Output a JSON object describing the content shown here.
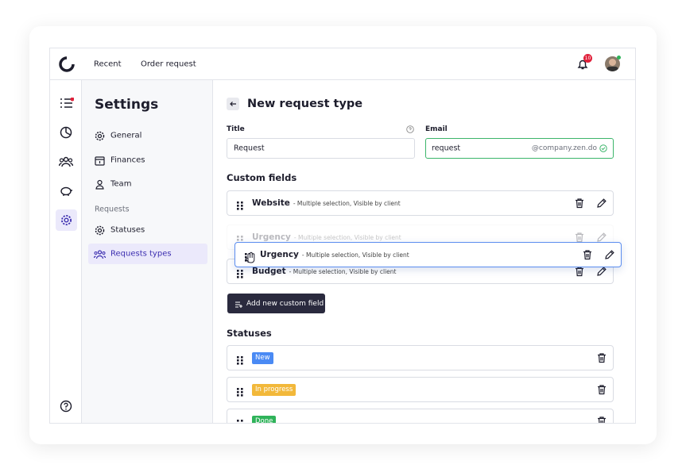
{
  "top_nav": {
    "links": [
      "Recent",
      "Order request"
    ],
    "notification_count": 10
  },
  "sidebar": {
    "title": "Settings",
    "items": [
      "General",
      "Finances",
      "Team"
    ],
    "section": "Requests",
    "section_items": [
      "Statuses",
      "Requests types"
    ]
  },
  "form": {
    "title": "New request type",
    "fields": [
      {
        "label": "Title",
        "value": "Request"
      },
      {
        "label": "Email",
        "value": "request",
        "suffix": "@company.zen.do"
      }
    ],
    "custom_fields": {
      "heading": "Custom fields",
      "rows": [
        {
          "name": "Website",
          "details": "- Multiple selection, Visible by client"
        },
        {
          "name": "Urgency",
          "details": "- Multiple selection, Visible by client"
        },
        {
          "name": "Budget",
          "details": "- Multiple selection, Visible by client"
        }
      ],
      "dragging": {
        "name": "Urgency",
        "details": "- Multiple selection, Visible by client"
      }
    },
    "add_button": "Add new custom field"
  },
  "statuses": {
    "heading": "Statuses",
    "items": [
      "New",
      "In progress",
      "Done"
    ]
  }
}
